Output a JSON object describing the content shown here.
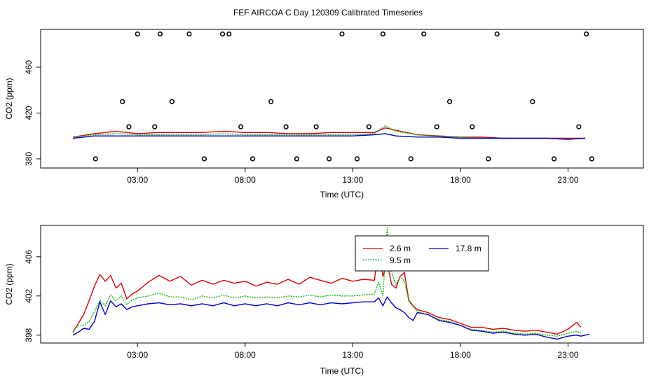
{
  "title": "FEF AIRCOA C  Day 120309  Calibrated Timeseries",
  "colors": {
    "series_2_6": "#dd0000",
    "series_9_5": "#00bb00",
    "series_17_8": "#0000cc",
    "axis": "#000000"
  },
  "chart_data": [
    {
      "type": "line",
      "xlabel": "Time (UTC)",
      "ylabel": "CO2 (ppm)",
      "xlim": [
        -1.5,
        26.5
      ],
      "ylim": [
        372,
        493
      ],
      "xticks": [
        3,
        8,
        13,
        18,
        23
      ],
      "xtick_labels": [
        "03:00",
        "08:00",
        "13:00",
        "18:00",
        "23:00"
      ],
      "yticks": [
        380,
        420,
        460
      ],
      "ytick_labels": [
        "380",
        "420",
        "460"
      ],
      "legend": "none",
      "series": [
        {
          "color": "#dd0000",
          "x": [
            0,
            1,
            2,
            3,
            4,
            5,
            6,
            7,
            8,
            9,
            10,
            11,
            12,
            13,
            14,
            14.5,
            15,
            16,
            17,
            18,
            19,
            20,
            21,
            22,
            23,
            23.8
          ],
          "y": [
            399,
            402,
            404,
            402,
            403,
            403,
            403,
            404,
            403,
            403,
            402,
            402,
            403,
            403,
            403,
            407,
            405,
            401,
            400,
            399,
            399,
            398,
            398,
            398,
            398,
            398
          ]
        },
        {
          "color": "#00bb00",
          "x": [
            0,
            1,
            2,
            3,
            4,
            5,
            6,
            7,
            8,
            9,
            10,
            11,
            12,
            13,
            14,
            14.5,
            15,
            16,
            17,
            18,
            19,
            20,
            21,
            22,
            23,
            23.8
          ],
          "y": [
            399,
            401,
            402,
            401,
            401,
            401,
            401,
            402,
            401,
            401,
            401,
            401,
            401,
            401,
            402,
            409,
            404,
            401,
            400,
            399,
            398,
            398,
            398,
            398,
            397,
            398
          ]
        },
        {
          "color": "#0000cc",
          "x": [
            0,
            1,
            2,
            3,
            4,
            5,
            6,
            7,
            8,
            9,
            10,
            11,
            12,
            13,
            14,
            14.5,
            15,
            16,
            17,
            18,
            19,
            20,
            21,
            22,
            23,
            23.8
          ],
          "y": [
            398,
            400,
            400,
            400,
            400,
            400,
            400,
            400,
            400,
            400,
            400,
            400,
            400,
            400,
            401,
            402,
            400,
            399,
            399,
            398,
            398,
            398,
            398,
            398,
            397,
            398
          ]
        }
      ],
      "scatter_points": {
        "x": [
          1.05,
          2.3,
          2.6,
          3.0,
          3.8,
          4.05,
          4.6,
          5.4,
          6.1,
          6.95,
          7.25,
          7.8,
          8.35,
          9.2,
          9.9,
          10.4,
          11.3,
          11.9,
          12.5,
          13.2,
          13.75,
          14.4,
          15.7,
          16.3,
          16.9,
          17.5,
          18.55,
          19.3,
          19.7,
          21.35,
          22.35,
          23.5,
          23.85,
          24.1
        ],
        "y": [
          380,
          430,
          408,
          489,
          408,
          489,
          430,
          489,
          380,
          489,
          489,
          408,
          380,
          430,
          408,
          380,
          408,
          380,
          489,
          380,
          408,
          489,
          380,
          489,
          408,
          430,
          408,
          380,
          489,
          430,
          380,
          408,
          489,
          380
        ]
      }
    },
    {
      "type": "line",
      "xlabel": "Time (UTC)",
      "ylabel": "CO2 (ppm)",
      "xlim": [
        -1.5,
        26.5
      ],
      "ylim": [
        397.2,
        409.2
      ],
      "xticks": [
        3,
        8,
        13,
        18,
        23
      ],
      "xtick_labels": [
        "03:00",
        "08:00",
        "13:00",
        "18:00",
        "23:00"
      ],
      "yticks": [
        398,
        402,
        406
      ],
      "ytick_labels": [
        "398",
        "402",
        "406"
      ],
      "legend": "top-right",
      "series": [
        {
          "name": "2.6 m",
          "color": "#dd0000",
          "x": [
            0,
            0.25,
            0.5,
            0.75,
            1,
            1.25,
            1.5,
            1.75,
            2,
            2.25,
            2.5,
            2.75,
            3,
            3.5,
            4,
            4.5,
            5,
            5.5,
            6,
            6.5,
            7,
            7.5,
            8,
            8.5,
            9,
            9.5,
            10,
            10.5,
            11,
            11.5,
            12,
            12.5,
            13,
            13.5,
            14,
            14.2,
            14.4,
            14.6,
            14.8,
            15,
            15.2,
            15.4,
            15.6,
            15.8,
            16,
            16.5,
            17,
            17.5,
            18,
            18.5,
            19,
            19.5,
            20,
            20.5,
            21,
            21.5,
            22,
            22.5,
            23,
            23.4,
            23.6
          ],
          "y": [
            398.3,
            399.2,
            400.1,
            401.5,
            403,
            404.2,
            403.5,
            404.1,
            402.8,
            403.3,
            401.7,
            402.2,
            402.5,
            403.4,
            404.1,
            403.5,
            404,
            403.1,
            403.6,
            403.2,
            403.6,
            403.3,
            403.5,
            403,
            403.4,
            403.2,
            403.7,
            403.2,
            403.9,
            403.6,
            403.3,
            403.8,
            403.5,
            403.7,
            403.6,
            406.6,
            404,
            405.4,
            403.2,
            402.8,
            404,
            404.4,
            401.6,
            401,
            400.6,
            400.3,
            399.8,
            399.6,
            399.2,
            398.8,
            398.8,
            398.6,
            398.7,
            398.5,
            398.4,
            398.5,
            398.3,
            398.1,
            398.6,
            399.3,
            398.8
          ]
        },
        {
          "name": "9.5 m",
          "color": "#00bb00",
          "x": [
            0,
            0.25,
            0.5,
            0.75,
            1,
            1.25,
            1.5,
            1.75,
            2,
            2.25,
            2.5,
            2.75,
            3,
            3.5,
            4,
            4.5,
            5,
            5.5,
            6,
            6.5,
            7,
            7.5,
            8,
            8.5,
            9,
            9.5,
            10,
            10.5,
            11,
            11.5,
            12,
            12.5,
            13,
            13.5,
            14,
            14.2,
            14.4,
            14.6,
            14.8,
            15,
            15.2,
            15.4,
            15.6,
            15.8,
            16,
            16.5,
            17,
            17.5,
            18,
            18.5,
            19,
            19.5,
            20,
            20.5,
            21,
            21.5,
            22,
            22.5,
            23,
            23.4,
            23.6
          ],
          "y": [
            398.4,
            399,
            399,
            399.4,
            400.4,
            401.6,
            401,
            402.1,
            401.5,
            402,
            401.1,
            401.6,
            401.8,
            402,
            402.3,
            401.9,
            401.9,
            401.6,
            402,
            401.8,
            402.1,
            401.8,
            402,
            401.8,
            401.9,
            401.8,
            402,
            401.9,
            402.1,
            401.9,
            402.1,
            402,
            402,
            402.1,
            402.2,
            403.4,
            402,
            409,
            404.5,
            403.1,
            404,
            403.5,
            401.5,
            400.9,
            400.4,
            400.1,
            399.6,
            399.4,
            399,
            398.6,
            398.5,
            398.3,
            398.4,
            398.2,
            398.1,
            398.2,
            398,
            397.9,
            398.2,
            398.4,
            398.2
          ]
        },
        {
          "name": "17.8 m",
          "color": "#0000cc",
          "x": [
            0,
            0.25,
            0.5,
            0.75,
            1,
            1.25,
            1.5,
            1.75,
            2,
            2.25,
            2.5,
            2.75,
            3,
            3.5,
            4,
            4.5,
            5,
            5.5,
            6,
            6.5,
            7,
            7.5,
            8,
            8.5,
            9,
            9.5,
            10,
            10.5,
            11,
            11.5,
            12,
            12.5,
            13,
            13.5,
            14,
            14.2,
            14.4,
            14.6,
            14.8,
            15,
            15.2,
            15.4,
            15.6,
            15.8,
            16,
            16.5,
            17,
            17.5,
            18,
            18.5,
            19,
            19.5,
            20,
            20.5,
            21,
            21.5,
            22,
            22.5,
            23,
            23.4,
            23.6,
            24
          ],
          "y": [
            398,
            398.3,
            398.7,
            398.6,
            399.4,
            401.4,
            400.1,
            401.5,
            400.9,
            401.2,
            400.6,
            400.9,
            401,
            401.2,
            401.3,
            401.1,
            401.2,
            401,
            401.2,
            401,
            401.3,
            401,
            401.2,
            401,
            401.2,
            401,
            401.3,
            401.1,
            401.3,
            401.1,
            401.3,
            401.2,
            401.3,
            401.4,
            401.4,
            401.8,
            401,
            401.9,
            401.3,
            400.8,
            400.6,
            400.3,
            399.8,
            399.5,
            400.3,
            400.1,
            399.5,
            399.3,
            399,
            398.5,
            398.4,
            398.2,
            398.3,
            398.1,
            398,
            398.1,
            397.8,
            397.6,
            397.9,
            398,
            397.9,
            398.1
          ]
        }
      ]
    }
  ]
}
